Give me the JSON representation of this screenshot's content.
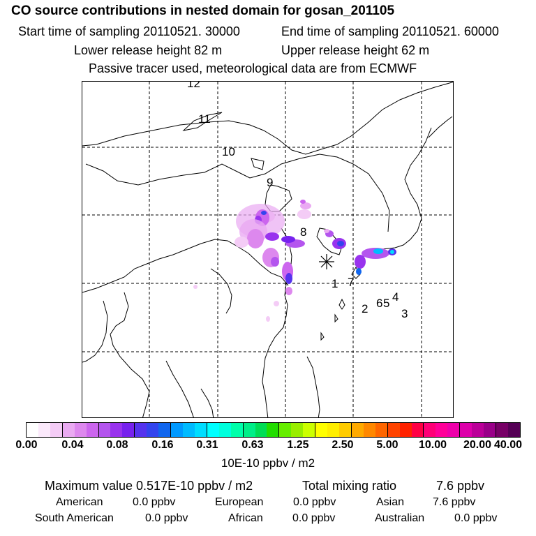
{
  "title": "CO  source contributions in nested domain for gosan_201105",
  "header": {
    "start_label": "Start time of sampling 20110521. 30000",
    "end_label": "End time of sampling 20110521. 60000",
    "lower_label": "Lower release height   82 m",
    "upper_label": "Upper release height   62 m",
    "tracer_line": "Passive tracer used, meteorological data are from ECMWF"
  },
  "map": {
    "trajectory_labels": [
      "12",
      "11",
      "10",
      "9",
      "8",
      "7",
      "1",
      "2",
      "6",
      "5",
      "4",
      "3"
    ],
    "receptor_marker": "asterisk-icon"
  },
  "colorbar": {
    "ticks": [
      "0.00",
      "0.04",
      "0.08",
      "0.16",
      "0.31",
      "0.63",
      "1.25",
      "2.50",
      "5.00",
      "10.00",
      "20.00",
      "40.00"
    ],
    "colors": [
      "#ffffff",
      "#fbe9fb",
      "#f4ccf6",
      "#eaaaf2",
      "#dd88ee",
      "#cc66ee",
      "#b455ee",
      "#9933ee",
      "#7722ee",
      "#5533ee",
      "#3344ee",
      "#1166ee",
      "#0099ff",
      "#00bbff",
      "#00ddff",
      "#00ffff",
      "#00ffdd",
      "#00ffaa",
      "#00ee88",
      "#00dd55",
      "#22dd00",
      "#66ee00",
      "#99ee00",
      "#ccff00",
      "#ffff00",
      "#ffee00",
      "#ffcc00",
      "#ffaa00",
      "#ff8800",
      "#ff6600",
      "#ff4400",
      "#ff2200",
      "#ff0044",
      "#ff0077",
      "#ff0099",
      "#ee00aa",
      "#dd00aa",
      "#bb0099",
      "#990088",
      "#770066",
      "#550055"
    ],
    "unit": "10E-10 ppbv / m2"
  },
  "summary": {
    "max_label": "Maximum value  0.517E-10 ppbv / m2",
    "total_label": "Total mixing ratio",
    "total_value": "7.6 ppbv",
    "regions": {
      "american": {
        "name": "American",
        "value": "0.0 ppbv"
      },
      "european": {
        "name": "European",
        "value": "0.0 ppbv"
      },
      "asian": {
        "name": "Asian",
        "value": "7.6 ppbv"
      },
      "south_american": {
        "name": "South American",
        "value": "0.0 ppbv"
      },
      "african": {
        "name": "African",
        "value": "0.0 ppbv"
      },
      "australian": {
        "name": "Australian",
        "value": "0.0 ppbv"
      }
    }
  }
}
